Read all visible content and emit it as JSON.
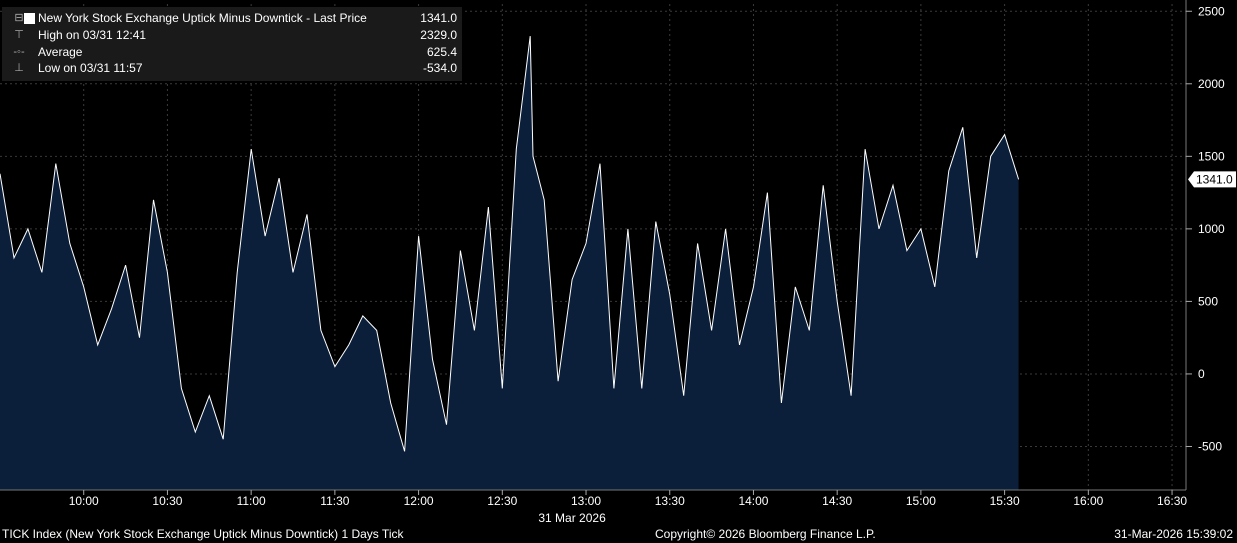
{
  "legend": {
    "series_label": "New York Stock Exchange Uptick Minus Downtick - Last Price",
    "last_value": "1341.0",
    "high_label": "High on 03/31 12:41",
    "high_value": "2329.0",
    "avg_label": "Average",
    "avg_value": "625.4",
    "low_label": "Low on 03/31 11:57",
    "low_value": "-534.0"
  },
  "footer": {
    "left": "TICK Index (New York Stock Exchange Uptick Minus Downtick) 1 Days Tick",
    "center": "Copyright© 2026 Bloomberg Finance L.P.",
    "right": "31-Mar-2026 15:39:02"
  },
  "colors": {
    "background": "#000000",
    "area_fill": "#0b1f3a",
    "line": "#ffffff",
    "grid": "#3a3a3a"
  },
  "chart_data": {
    "type": "area",
    "title": "New York Stock Exchange Uptick Minus Downtick - Last Price",
    "date_label": "31 Mar 2026",
    "x_ticks": [
      "10:00",
      "10:30",
      "11:00",
      "11:30",
      "12:00",
      "12:30",
      "13:00",
      "13:30",
      "14:00",
      "14:30",
      "15:00",
      "15:30",
      "16:00",
      "16:30"
    ],
    "y_ticks": [
      2500,
      2000,
      1500,
      1000,
      500,
      0,
      -500
    ],
    "ylim": [
      -800,
      2550
    ],
    "xlim": [
      "09:30",
      "16:35"
    ],
    "grid": true,
    "last_price_label": "1341.0",
    "series": [
      {
        "name": "New York Stock Exchange Uptick Minus Downtick - Last Price",
        "x": [
          "09:30",
          "09:35",
          "09:40",
          "09:45",
          "09:50",
          "09:55",
          "10:00",
          "10:05",
          "10:10",
          "10:15",
          "10:20",
          "10:25",
          "10:30",
          "10:35",
          "10:40",
          "10:45",
          "10:50",
          "10:55",
          "11:00",
          "11:05",
          "11:10",
          "11:15",
          "11:20",
          "11:25",
          "11:30",
          "11:35",
          "11:40",
          "11:45",
          "11:50",
          "11:55",
          "12:00",
          "12:05",
          "12:10",
          "12:15",
          "12:20",
          "12:25",
          "12:30",
          "12:35",
          "12:40",
          "12:41",
          "12:45",
          "12:50",
          "12:55",
          "13:00",
          "13:05",
          "13:10",
          "13:15",
          "13:20",
          "13:25",
          "13:30",
          "13:35",
          "13:40",
          "13:45",
          "13:50",
          "13:55",
          "14:00",
          "14:05",
          "14:10",
          "14:15",
          "14:20",
          "14:25",
          "14:30",
          "14:35",
          "14:40",
          "14:45",
          "14:50",
          "14:55",
          "15:00",
          "15:05",
          "15:10",
          "15:15",
          "15:20",
          "15:25",
          "15:30",
          "15:35"
        ],
        "values": [
          1380,
          800,
          1000,
          700,
          1450,
          900,
          600,
          200,
          450,
          750,
          250,
          1200,
          700,
          -100,
          -400,
          -150,
          -450,
          700,
          1550,
          950,
          1350,
          700,
          1100,
          300,
          50,
          200,
          400,
          300,
          -200,
          -534,
          950,
          100,
          -350,
          850,
          300,
          1150,
          -100,
          1550,
          2329,
          1500,
          1200,
          -50,
          650,
          900,
          1450,
          -100,
          1000,
          -100,
          1050,
          550,
          -150,
          900,
          300,
          1000,
          200,
          600,
          1250,
          -200,
          600,
          300,
          1300,
          500,
          -150,
          1550,
          1000,
          1300,
          850,
          1000,
          600,
          1400,
          1700,
          800,
          1500,
          1650,
          1341
        ]
      }
    ]
  }
}
